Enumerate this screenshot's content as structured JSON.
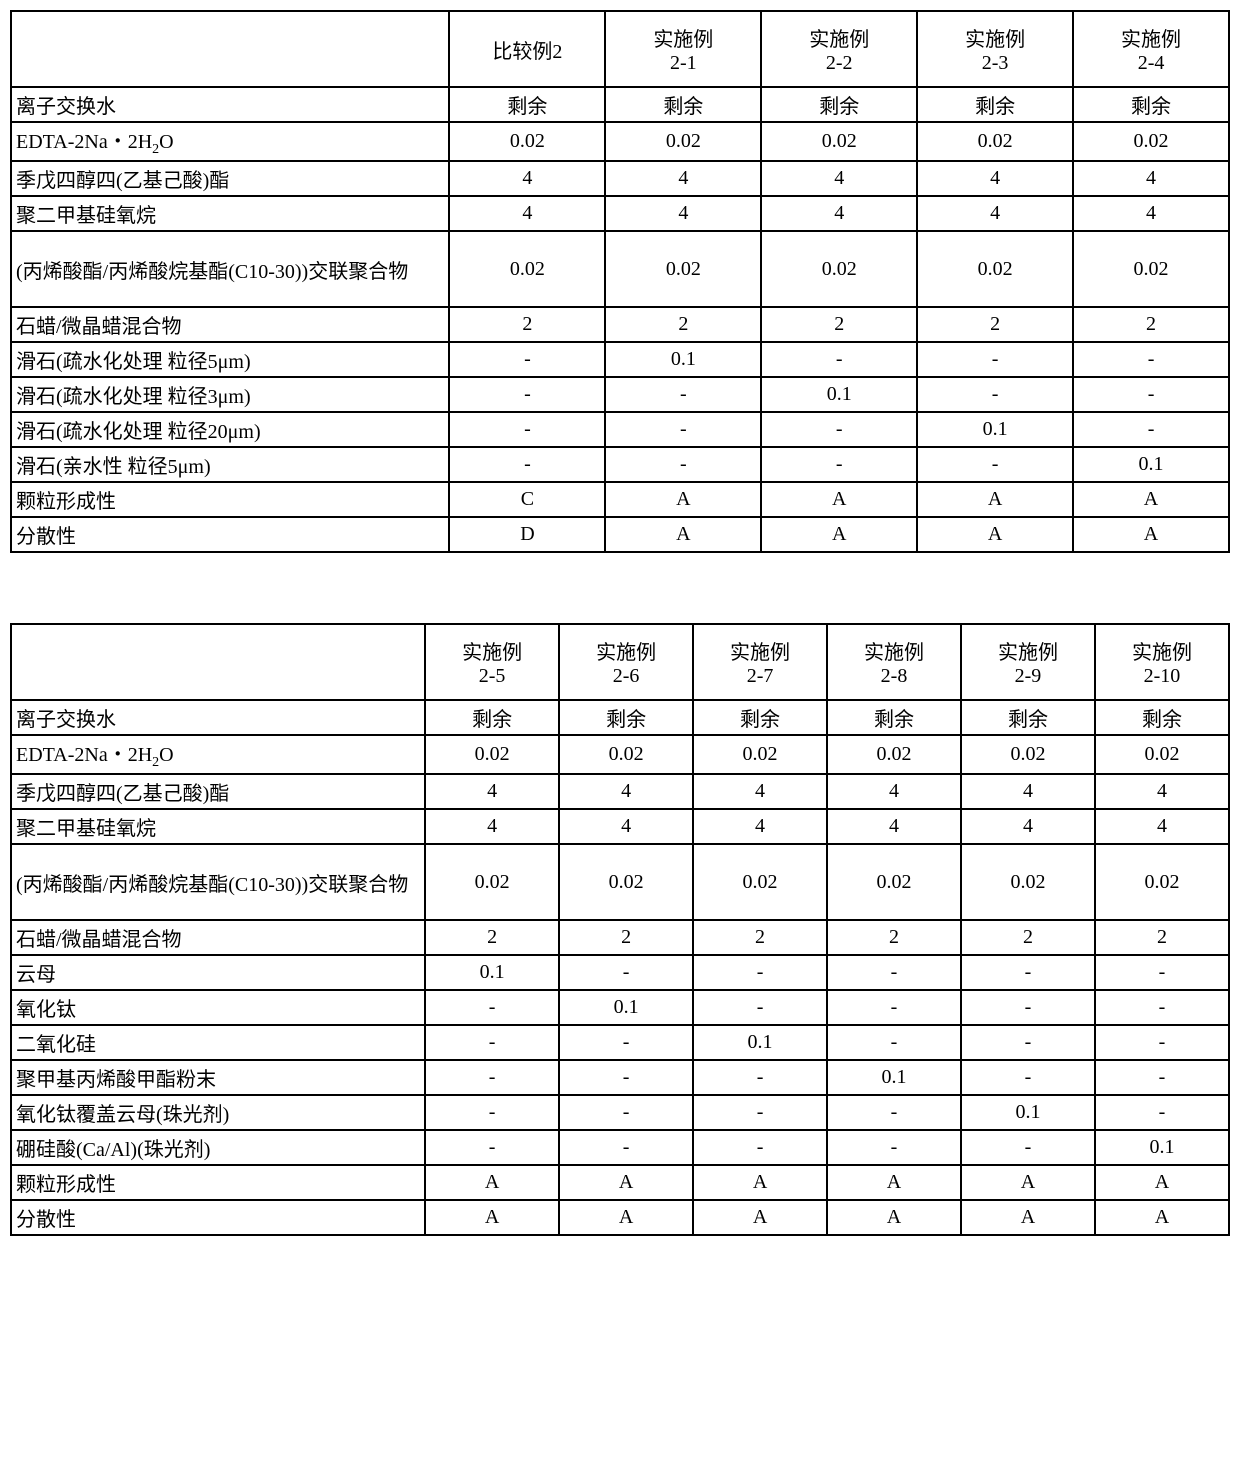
{
  "table1": {
    "label_col_width_pct": 36,
    "headers": [
      "比较例2",
      "实施例\n2-1",
      "实施例\n2-2",
      "实施例\n2-3",
      "实施例\n2-4"
    ],
    "rows": [
      {
        "label": "离子交换水",
        "cells": [
          "剩余",
          "剩余",
          "剩余",
          "剩余",
          "剩余"
        ]
      },
      {
        "label": "EDTA-2Na・2H₂O",
        "cells": [
          "0.02",
          "0.02",
          "0.02",
          "0.02",
          "0.02"
        ]
      },
      {
        "label": "季戊四醇四(乙基己酸)酯",
        "cells": [
          "4",
          "4",
          "4",
          "4",
          "4"
        ]
      },
      {
        "label": "聚二甲基硅氧烷",
        "cells": [
          "4",
          "4",
          "4",
          "4",
          "4"
        ]
      },
      {
        "label": "(丙烯酸酯/丙烯酸烷基酯(C10-30))交联聚合物",
        "tall": true,
        "cells": [
          "0.02",
          "0.02",
          "0.02",
          "0.02",
          "0.02"
        ]
      },
      {
        "label": "石蜡/微晶蜡混合物",
        "cells": [
          "2",
          "2",
          "2",
          "2",
          "2"
        ]
      },
      {
        "label": "滑石(疏水化处理 粒径5μm)",
        "cells": [
          "-",
          "0.1",
          "-",
          "-",
          "-"
        ]
      },
      {
        "label": "滑石(疏水化处理 粒径3μm)",
        "cells": [
          "-",
          "-",
          "0.1",
          "-",
          "-"
        ]
      },
      {
        "label": "滑石(疏水化处理 粒径20μm)",
        "cells": [
          "-",
          "-",
          "-",
          "0.1",
          "-"
        ]
      },
      {
        "label": "滑石(亲水性 粒径5μm)",
        "cells": [
          "-",
          "-",
          "-",
          "-",
          "0.1"
        ]
      },
      {
        "label": "颗粒形成性",
        "cells": [
          "C",
          "A",
          "A",
          "A",
          "A"
        ]
      },
      {
        "label": "分散性",
        "cells": [
          "D",
          "A",
          "A",
          "A",
          "A"
        ]
      }
    ]
  },
  "table2": {
    "label_col_width_pct": 34,
    "headers": [
      "实施例\n2-5",
      "实施例\n2-6",
      "实施例\n2-7",
      "实施例\n2-8",
      "实施例\n2-9",
      "实施例\n2-10"
    ],
    "rows": [
      {
        "label": "离子交换水",
        "cells": [
          "剩余",
          "剩余",
          "剩余",
          "剩余",
          "剩余",
          "剩余"
        ]
      },
      {
        "label": "EDTA-2Na・2H₂O",
        "cells": [
          "0.02",
          "0.02",
          "0.02",
          "0.02",
          "0.02",
          "0.02"
        ]
      },
      {
        "label": "季戊四醇四(乙基己酸)酯",
        "cells": [
          "4",
          "4",
          "4",
          "4",
          "4",
          "4"
        ]
      },
      {
        "label": "聚二甲基硅氧烷",
        "cells": [
          "4",
          "4",
          "4",
          "4",
          "4",
          "4"
        ]
      },
      {
        "label": "(丙烯酸酯/丙烯酸烷基酯(C10-30))交联聚合物",
        "tall": true,
        "cells": [
          "0.02",
          "0.02",
          "0.02",
          "0.02",
          "0.02",
          "0.02"
        ]
      },
      {
        "label": "石蜡/微晶蜡混合物",
        "cells": [
          "2",
          "2",
          "2",
          "2",
          "2",
          "2"
        ]
      },
      {
        "label": "云母",
        "cells": [
          "0.1",
          "-",
          "-",
          "-",
          "-",
          "-"
        ]
      },
      {
        "label": "氧化钛",
        "cells": [
          "-",
          "0.1",
          "-",
          "-",
          "-",
          "-"
        ]
      },
      {
        "label": "二氧化硅",
        "cells": [
          "-",
          "-",
          "0.1",
          "-",
          "-",
          "-"
        ]
      },
      {
        "label": "聚甲基丙烯酸甲酯粉末",
        "cells": [
          "-",
          "-",
          "-",
          "0.1",
          "-",
          "-"
        ]
      },
      {
        "label": "氧化钛覆盖云母(珠光剂)",
        "cells": [
          "-",
          "-",
          "-",
          "-",
          "0.1",
          "-"
        ]
      },
      {
        "label": "硼硅酸(Ca/Al)(珠光剂)",
        "cells": [
          "-",
          "-",
          "-",
          "-",
          "-",
          "0.1"
        ]
      },
      {
        "label": "颗粒形成性",
        "cells": [
          "A",
          "A",
          "A",
          "A",
          "A",
          "A"
        ]
      },
      {
        "label": "分散性",
        "cells": [
          "A",
          "A",
          "A",
          "A",
          "A",
          "A"
        ]
      }
    ]
  }
}
